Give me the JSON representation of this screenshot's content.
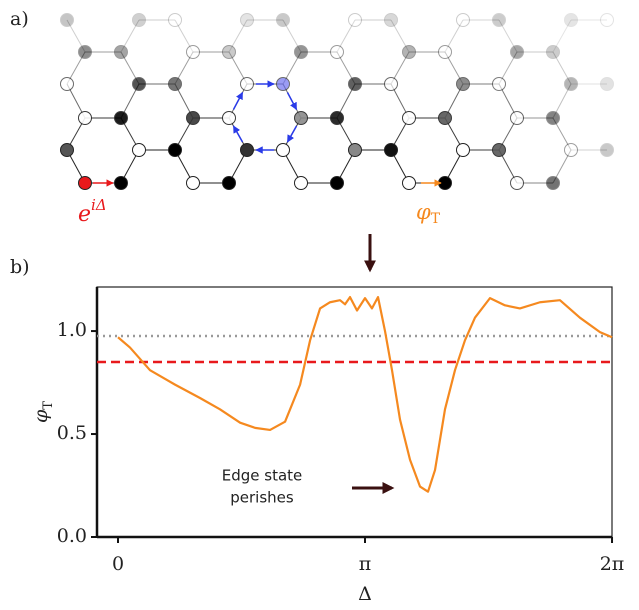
{
  "panel_a": {
    "label": "a)",
    "input_label": {
      "base": "e",
      "exponent": "iΔ"
    },
    "output_label": {
      "base": "φ",
      "subscript": "T"
    }
  },
  "panel_b": {
    "label": "b)"
  },
  "chart_data": {
    "type": "line",
    "x": [
      0,
      0.153,
      0.407,
      0.725,
      1.043,
      1.297,
      1.553,
      1.743,
      1.934,
      2.125,
      2.316,
      2.443,
      2.57,
      2.697,
      2.824,
      2.888,
      2.951,
      3.04,
      3.142,
      3.23,
      3.307,
      3.396,
      3.485,
      3.587,
      3.714,
      3.841,
      3.943,
      4.032,
      4.159,
      4.286,
      4.413,
      4.54,
      4.731,
      4.922,
      5.112,
      5.367,
      5.621,
      5.875,
      6.13,
      6.283
    ],
    "values": [
      0.97,
      0.92,
      0.81,
      0.74,
      0.675,
      0.62,
      0.555,
      0.53,
      0.52,
      0.56,
      0.74,
      0.955,
      1.11,
      1.14,
      1.15,
      1.13,
      1.165,
      1.1,
      1.16,
      1.11,
      1.165,
      1.0,
      0.81,
      0.57,
      0.375,
      0.245,
      0.22,
      0.325,
      0.62,
      0.81,
      0.955,
      1.065,
      1.16,
      1.125,
      1.11,
      1.14,
      1.15,
      1.065,
      0.995,
      0.97
    ],
    "color": "#f5891f",
    "xlabel": "Δ",
    "ylabel": {
      "base": "φ",
      "subscript": "T"
    },
    "xlim": [
      -0.267,
      6.283
    ],
    "xticks": [
      0,
      {
        "value": 3.1416,
        "label": "π"
      },
      {
        "value": 6.2832,
        "label": "2π"
      }
    ],
    "ylim": [
      0,
      1.214
    ],
    "yticks": [
      {
        "value": 0,
        "label": "0.0"
      },
      {
        "value": 0.5,
        "label": "0.5"
      },
      {
        "value": 1,
        "label": "1.0"
      }
    ],
    "hlines": [
      {
        "value": 0.976,
        "color": "#999999",
        "style": "dotted"
      },
      {
        "value": 0.85,
        "color": "#e8191c",
        "style": "dashed"
      }
    ],
    "annotation": [
      "Edge state",
      "perishes"
    ]
  }
}
